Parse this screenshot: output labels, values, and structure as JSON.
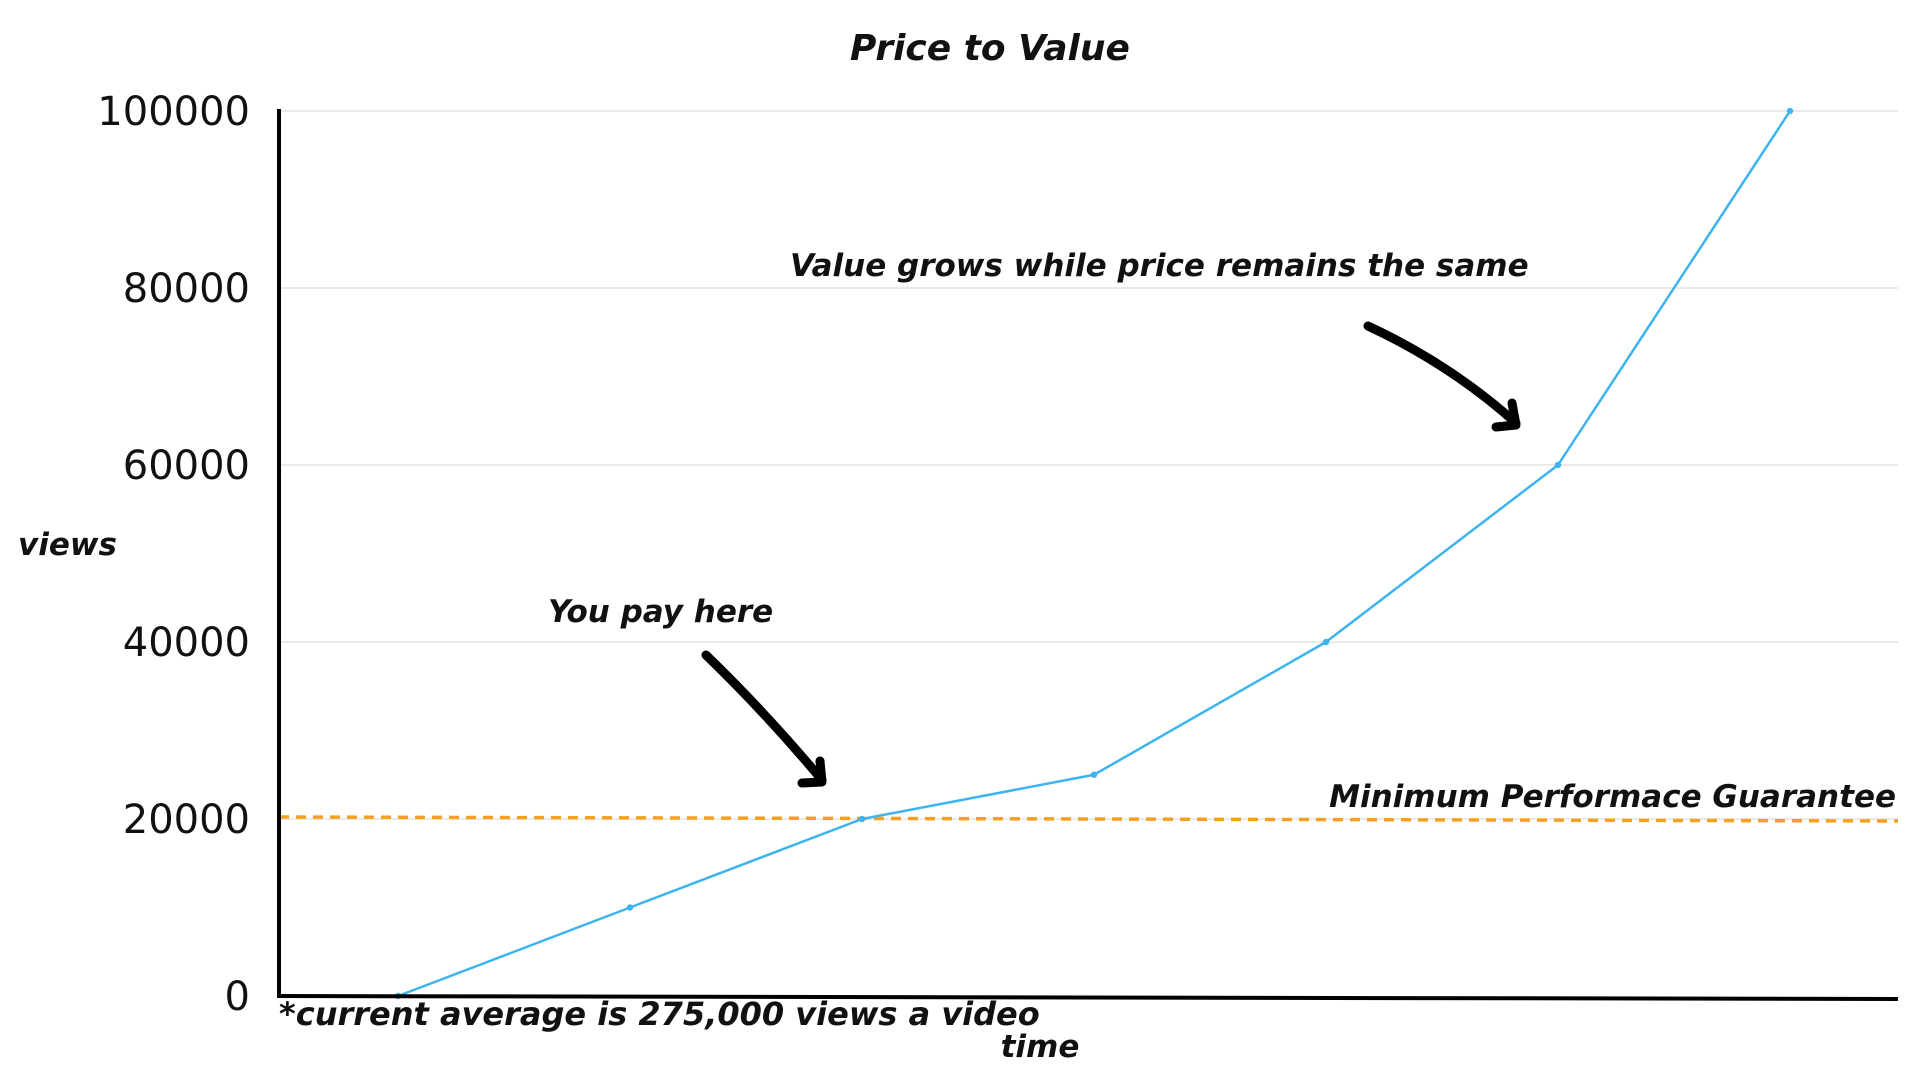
{
  "chart_data": {
    "type": "line",
    "title": "Price to Value",
    "xlabel": "time",
    "ylabel": "views",
    "ylim": [
      0,
      100000
    ],
    "yticks": [
      0,
      20000,
      40000,
      60000,
      80000,
      100000
    ],
    "ytick_labels": [
      "0",
      "20000",
      "40000",
      "60000",
      "80000",
      "100000"
    ],
    "grid": true,
    "x": [
      0,
      1,
      2,
      3,
      4,
      5,
      6
    ],
    "series": [
      {
        "values": [
          0,
          10000,
          20000,
          25000,
          40000,
          60000,
          100000
        ],
        "color": "#3db3f0"
      }
    ],
    "guarantee_line": {
      "label": "Minimum Performace Guarantee",
      "value": 20000,
      "color": "#f5a020"
    },
    "annotations": [
      {
        "text": "Value grows while price remains the same",
        "points_to_index": 5
      },
      {
        "text": "You pay here",
        "points_to_index": 2
      }
    ],
    "footnote": "*current average is 275,000 views a video"
  }
}
